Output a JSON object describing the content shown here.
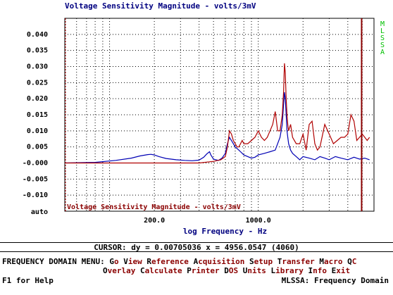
{
  "window": {
    "side_label": [
      "M",
      "L",
      "S",
      "S",
      "A"
    ],
    "help": "F1 for Help",
    "status": "MLSSA: Frequency Domain"
  },
  "colors": {
    "blue_trace": "#0000b4",
    "red_trace": "#b00000",
    "cursor": "#8b0000",
    "menu_text": "#8b0000",
    "title": "#000080",
    "side_label": "#00c000"
  },
  "cursor_readout": "CURSOR: dy = 0.00705036 x = 4956.0547 (4060)",
  "menu": {
    "prefix": "FREQUENCY DOMAIN MENU: ",
    "line1": [
      {
        "hotkey": "G",
        "rest": "o"
      },
      {
        "hotkey": "V",
        "rest": "iew"
      },
      {
        "hotkey": "R",
        "rest": "eference"
      },
      {
        "hotkey": "A",
        "rest": "cquisition"
      },
      {
        "hotkey": "S",
        "rest": "etup"
      },
      {
        "hotkey": "T",
        "rest": "ransfer"
      },
      {
        "hotkey": "M",
        "rest": "acro"
      },
      {
        "hotkey": "Q",
        "rest": "C"
      }
    ],
    "line2": [
      {
        "hotkey": "O",
        "rest": "verlay"
      },
      {
        "hotkey": "C",
        "rest": "alculate"
      },
      {
        "hotkey": "P",
        "rest": "rinter"
      },
      {
        "hotkey": "D",
        "rest": "OS"
      },
      {
        "hotkey": "U",
        "rest": "nits"
      },
      {
        "hotkey": "L",
        "rest": "ibrary"
      },
      {
        "hotkey": "I",
        "rest": "nfo"
      },
      {
        "hotkey": "E",
        "rest": "xit"
      }
    ]
  },
  "chart_data": {
    "type": "line",
    "title": "Voltage Sensitivity Magnitude - volts/3mV",
    "legend_text": "Voltage Sensitivity Magnitude - volts/3mV",
    "xlabel": "log Frequency - Hz",
    "x_scale": "log",
    "xlim": [
      50,
      6000
    ],
    "ylim": [
      -0.015,
      0.045
    ],
    "y_ticks": [
      "0.040",
      "0.035",
      "0.030",
      "0.025",
      "0.020",
      "0.015",
      "0.010",
      "0.005",
      "-0.000",
      "-0.005",
      "-0.010"
    ],
    "y_tick_values": [
      0.04,
      0.035,
      0.03,
      0.025,
      0.02,
      0.015,
      0.01,
      0.005,
      0.0,
      -0.005,
      -0.01
    ],
    "y_bottom_label": "auto",
    "x_tick_labels": [
      "200.0",
      "1000.0"
    ],
    "x_tick_values": [
      200,
      1000
    ],
    "grid": true,
    "cursor_x": 4956.0547,
    "series": [
      {
        "color": "#0000b4",
        "x": [
          50,
          80,
          110,
          140,
          160,
          180,
          190,
          200,
          215,
          240,
          280,
          320,
          360,
          400,
          430,
          450,
          470,
          480,
          500,
          520,
          540,
          570,
          600,
          620,
          640,
          660,
          680,
          700,
          720,
          740,
          760,
          780,
          800,
          850,
          900,
          950,
          1000,
          1100,
          1200,
          1300,
          1400,
          1450,
          1480,
          1500,
          1520,
          1540,
          1560,
          1580,
          1600,
          1650,
          1700,
          1800,
          1900,
          2000,
          2200,
          2400,
          2600,
          2800,
          3000,
          3300,
          3600,
          4000,
          4400,
          4800,
          5200,
          5600
        ],
        "y": [
          0.0,
          0.0002,
          0.0008,
          0.0015,
          0.0022,
          0.0026,
          0.0027,
          0.0025,
          0.002,
          0.0014,
          0.001,
          0.0008,
          0.0007,
          0.0009,
          0.0018,
          0.0028,
          0.0035,
          0.0025,
          0.0012,
          0.001,
          0.0008,
          0.0015,
          0.003,
          0.006,
          0.008,
          0.007,
          0.006,
          0.005,
          0.0045,
          0.004,
          0.0035,
          0.003,
          0.0025,
          0.002,
          0.0015,
          0.0018,
          0.0025,
          0.003,
          0.0035,
          0.004,
          0.008,
          0.012,
          0.018,
          0.022,
          0.02,
          0.015,
          0.01,
          0.008,
          0.006,
          0.004,
          0.003,
          0.002,
          0.001,
          0.002,
          0.0015,
          0.001,
          0.002,
          0.0015,
          0.001,
          0.002,
          0.0015,
          0.001,
          0.0018,
          0.0012,
          0.0015,
          0.001
        ]
      },
      {
        "color": "#b00000",
        "x": [
          50,
          100,
          200,
          300,
          400,
          500,
          560,
          600,
          620,
          640,
          660,
          680,
          700,
          720,
          740,
          760,
          780,
          800,
          850,
          900,
          950,
          1000,
          1050,
          1100,
          1150,
          1200,
          1250,
          1300,
          1350,
          1400,
          1450,
          1480,
          1500,
          1520,
          1540,
          1560,
          1580,
          1600,
          1650,
          1700,
          1800,
          1900,
          2000,
          2100,
          2200,
          2300,
          2400,
          2500,
          2600,
          2800,
          3000,
          3200,
          3400,
          3600,
          3800,
          4000,
          4200,
          4400,
          4600,
          4800,
          5000,
          5200,
          5400,
          5600
        ],
        "y": [
          0.0,
          0.0,
          0.0,
          0.0,
          0.0,
          0.0005,
          0.001,
          0.002,
          0.005,
          0.01,
          0.009,
          0.007,
          0.006,
          0.005,
          0.005,
          0.006,
          0.007,
          0.006,
          0.006,
          0.007,
          0.008,
          0.01,
          0.008,
          0.007,
          0.008,
          0.01,
          0.012,
          0.016,
          0.01,
          0.01,
          0.015,
          0.022,
          0.031,
          0.028,
          0.02,
          0.015,
          0.012,
          0.01,
          0.012,
          0.008,
          0.006,
          0.006,
          0.009,
          0.004,
          0.012,
          0.013,
          0.006,
          0.004,
          0.005,
          0.012,
          0.009,
          0.006,
          0.007,
          0.008,
          0.008,
          0.009,
          0.015,
          0.013,
          0.007,
          0.008,
          0.009,
          0.008,
          0.007,
          0.008
        ]
      }
    ]
  }
}
